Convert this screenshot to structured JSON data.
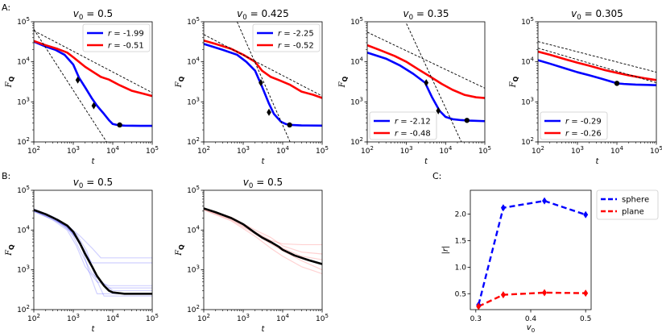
{
  "figure": {
    "panel_labels": [
      "A:",
      "B:",
      "C:"
    ]
  },
  "colors": {
    "sphere": "#0000ff",
    "plane": "#ff0000",
    "fit": "#000000",
    "mean": "#000000"
  },
  "chart_data": [
    {
      "id": "A1",
      "type": "line",
      "title": "v0 = 0.5",
      "title_v": "v",
      "title_sub": "0",
      "title_rest": " = 0.5",
      "xlabel": "t",
      "ylabel": "F_Q",
      "xscale": "log",
      "yscale": "log",
      "xlim": [
        100,
        100000
      ],
      "ylim": [
        100,
        100000
      ],
      "xticks": [
        "10^2",
        "10^3",
        "10^4",
        "10^5"
      ],
      "yticks": [
        "10^2",
        "10^3",
        "10^4",
        "10^5"
      ],
      "legend": {
        "loc": "upper-right",
        "entries": [
          {
            "label": "r = -1.99",
            "color": "#0000ff"
          },
          {
            "label": "r = -0.51",
            "color": "#ff0000"
          }
        ]
      },
      "series": [
        {
          "name": "sphere",
          "color": "#0000ff",
          "x": [
            100,
            200,
            350,
            600,
            1000,
            1400,
            2000,
            3000,
            4000,
            6000,
            8000,
            10000,
            14000,
            20000,
            50000,
            100000
          ],
          "y": [
            32000,
            24000,
            20000,
            15000,
            8500,
            4000,
            2300,
            1200,
            800,
            500,
            350,
            280,
            260,
            255,
            252,
            252
          ]
        },
        {
          "name": "plane",
          "color": "#ff0000",
          "x": [
            100,
            200,
            400,
            700,
            1000,
            2000,
            3000,
            5000,
            8000,
            15000,
            30000,
            60000,
            100000
          ],
          "y": [
            33000,
            26000,
            21000,
            17000,
            13000,
            7500,
            5800,
            4200,
            3600,
            2600,
            1900,
            1600,
            1400
          ]
        }
      ],
      "fits": [
        {
          "x": [
            100,
            20000
          ],
          "y": [
            65000,
            20
          ]
        },
        {
          "x": [
            100,
            100000
          ],
          "y": [
            60000,
            1700
          ]
        }
      ],
      "markers": [
        {
          "x": 1300,
          "y": 3500
        },
        {
          "x": 3300,
          "y": 800
        },
        {
          "x": 15000,
          "y": 265
        }
      ]
    },
    {
      "id": "A2",
      "type": "line",
      "title": "v0 = 0.425",
      "title_v": "v",
      "title_sub": "0",
      "title_rest": " = 0.425",
      "xlabel": "t",
      "ylabel": "F_Q",
      "xscale": "log",
      "yscale": "log",
      "xlim": [
        100,
        100000
      ],
      "ylim": [
        100,
        100000
      ],
      "xticks": [
        "10^2",
        "10^3",
        "10^4",
        "10^5"
      ],
      "yticks": [
        "10^2",
        "10^3",
        "10^4",
        "10^5"
      ],
      "legend": {
        "loc": "upper-right",
        "entries": [
          {
            "label": "r = -2.25",
            "color": "#0000ff"
          },
          {
            "label": "r = -0.52",
            "color": "#ff0000"
          }
        ]
      },
      "series": [
        {
          "name": "sphere",
          "color": "#0000ff",
          "x": [
            100,
            300,
            700,
            1200,
            2000,
            3000,
            4500,
            6000,
            9000,
            12000,
            16000,
            30000,
            100000
          ],
          "y": [
            28000,
            20000,
            15000,
            10000,
            6000,
            2400,
            900,
            500,
            320,
            280,
            265,
            258,
            255
          ]
        },
        {
          "name": "plane",
          "color": "#ff0000",
          "x": [
            100,
            200,
            500,
            1000,
            2000,
            3000,
            5000,
            8000,
            15000,
            30000,
            60000,
            100000
          ],
          "y": [
            34000,
            28000,
            21000,
            15000,
            10000,
            6000,
            4200,
            3500,
            2700,
            1800,
            1500,
            1250
          ]
        }
      ],
      "fits": [
        {
          "x": [
            700,
            17000
          ],
          "y": [
            100000,
            80
          ]
        },
        {
          "x": [
            100,
            100000
          ],
          "y": [
            48000,
            1400
          ]
        }
      ],
      "markers": [
        {
          "x": 2800,
          "y": 3000
        },
        {
          "x": 4500,
          "y": 550
        },
        {
          "x": 15000,
          "y": 265
        }
      ]
    },
    {
      "id": "A3",
      "type": "line",
      "title": "v0 = 0.35",
      "title_v": "v",
      "title_sub": "0",
      "title_rest": " = 0.35",
      "xlabel": "t",
      "ylabel": "F_Q",
      "xscale": "log",
      "yscale": "log",
      "xlim": [
        100,
        100000
      ],
      "ylim": [
        100,
        100000
      ],
      "xticks": [
        "10^2",
        "10^3",
        "10^4",
        "10^5"
      ],
      "yticks": [
        "10^2",
        "10^3",
        "10^4",
        "10^5"
      ],
      "legend": {
        "loc": "lower-left",
        "entries": [
          {
            "label": "r = -2.12",
            "color": "#0000ff"
          },
          {
            "label": "r = -0.48",
            "color": "#ff0000"
          }
        ]
      },
      "series": [
        {
          "name": "sphere",
          "color": "#0000ff",
          "x": [
            100,
            300,
            700,
            1500,
            3000,
            4500,
            7000,
            10000,
            15000,
            25000,
            40000,
            100000
          ],
          "y": [
            17000,
            12000,
            8000,
            5000,
            3000,
            1300,
            600,
            420,
            370,
            350,
            340,
            330
          ]
        },
        {
          "name": "plane",
          "color": "#ff0000",
          "x": [
            100,
            200,
            500,
            1000,
            2000,
            4000,
            8000,
            15000,
            30000,
            60000,
            100000
          ],
          "y": [
            26000,
            20000,
            14000,
            10000,
            6500,
            4300,
            2800,
            2000,
            1500,
            1300,
            1250
          ]
        }
      ],
      "fits": [
        {
          "x": [
            1000,
            28000
          ],
          "y": [
            90000,
            80
          ]
        },
        {
          "x": [
            100,
            100000
          ],
          "y": [
            55000,
            2200
          ]
        }
      ],
      "markers": [
        {
          "x": 3200,
          "y": 3000
        },
        {
          "x": 6500,
          "y": 600
        },
        {
          "x": 35000,
          "y": 345
        }
      ]
    },
    {
      "id": "A4",
      "type": "line",
      "title": "v0 = 0.305",
      "title_v": "v",
      "title_sub": "0",
      "title_rest": " = 0.305",
      "xlabel": "t",
      "ylabel": "F_Q",
      "xscale": "log",
      "yscale": "log",
      "xlim": [
        100,
        100000
      ],
      "ylim": [
        100,
        100000
      ],
      "xticks": [
        "10^2",
        "10^3",
        "10^4",
        "10^5"
      ],
      "yticks": [
        "10^2",
        "10^3",
        "10^4",
        "10^5"
      ],
      "legend": {
        "loc": "lower-left",
        "entries": [
          {
            "label": "r = -0.29",
            "color": "#0000ff"
          },
          {
            "label": "r = -0.26",
            "color": "#ff0000"
          }
        ]
      },
      "series": [
        {
          "name": "sphere",
          "color": "#0000ff",
          "x": [
            100,
            200,
            500,
            1000,
            2000,
            4000,
            8000,
            10000,
            15000,
            30000,
            60000,
            100000
          ],
          "y": [
            11000,
            9000,
            6800,
            5500,
            4600,
            3800,
            3100,
            2900,
            2800,
            2700,
            2650,
            2600
          ]
        },
        {
          "name": "plane",
          "color": "#ff0000",
          "x": [
            100,
            200,
            500,
            1000,
            2000,
            5000,
            10000,
            20000,
            50000,
            100000
          ],
          "y": [
            18000,
            15000,
            11500,
            9500,
            8000,
            6200,
            5300,
            4600,
            3900,
            3500
          ]
        }
      ],
      "fits": [
        {
          "x": [
            100,
            100000
          ],
          "y": [
            22000,
            3000
          ]
        },
        {
          "x": [
            100,
            100000
          ],
          "y": [
            32000,
            5500
          ]
        }
      ],
      "markers": [
        {
          "x": 10000,
          "y": 2900
        }
      ]
    },
    {
      "id": "B1",
      "type": "line",
      "title": "v0 = 0.5",
      "title_v": "v",
      "title_sub": "0",
      "title_rest": " = 0.5",
      "xlabel": "t",
      "ylabel": "F_Q",
      "xscale": "log",
      "yscale": "log",
      "xlim": [
        100,
        100000
      ],
      "ylim": [
        100,
        100000
      ],
      "xticks": [
        "10^2",
        "10^3",
        "10^4",
        "10^5"
      ],
      "yticks": [
        "10^2",
        "10^3",
        "10^4",
        "10^5"
      ],
      "ensemble_color": "#0000ff",
      "ensemble": [
        {
          "x": [
            100,
            300,
            700,
            1200,
            2000,
            3000,
            5000,
            20000,
            100000
          ],
          "y": [
            32000,
            20000,
            12000,
            6000,
            2500,
            1500,
            1500,
            1500,
            1500
          ]
        },
        {
          "x": [
            100,
            300,
            700,
            1200,
            2000,
            4000,
            8000,
            100000
          ],
          "y": [
            30000,
            18000,
            10000,
            4000,
            1200,
            500,
            400,
            400
          ]
        },
        {
          "x": [
            100,
            300,
            700,
            1000,
            1500,
            3000,
            10000,
            100000
          ],
          "y": [
            33000,
            21000,
            11000,
            7000,
            3000,
            800,
            300,
            300
          ]
        },
        {
          "x": [
            100,
            300,
            700,
            1500,
            2500,
            4000,
            100000
          ],
          "y": [
            31000,
            19000,
            12000,
            5000,
            900,
            250,
            250
          ]
        },
        {
          "x": [
            100,
            250,
            600,
            1200,
            2200,
            3500,
            6000,
            100000
          ],
          "y": [
            29000,
            20000,
            13000,
            8000,
            3000,
            700,
            220,
            220
          ]
        },
        {
          "x": [
            100,
            300,
            800,
            1500,
            3000,
            5000,
            100000
          ],
          "y": [
            34000,
            22000,
            12000,
            7000,
            3500,
            2000,
            2000
          ]
        },
        {
          "x": [
            100,
            300,
            900,
            2000,
            4000,
            7000,
            100000
          ],
          "y": [
            30000,
            20000,
            9000,
            3000,
            700,
            350,
            350
          ]
        }
      ],
      "series": [
        {
          "name": "mean",
          "color": "#000000",
          "x": [
            100,
            200,
            400,
            700,
            1000,
            1500,
            2000,
            3000,
            4000,
            6000,
            8000,
            10000,
            20000,
            50000,
            100000
          ],
          "y": [
            32000,
            25000,
            18000,
            13000,
            9000,
            4500,
            2500,
            1200,
            700,
            400,
            300,
            270,
            250,
            250,
            250
          ]
        }
      ]
    },
    {
      "id": "B2",
      "type": "line",
      "title": "v0 = 0.5",
      "title_v": "v",
      "title_sub": "0",
      "title_rest": " = 0.5",
      "xlabel": "t",
      "ylabel": "F_Q",
      "xscale": "log",
      "yscale": "log",
      "xlim": [
        100,
        100000
      ],
      "ylim": [
        100,
        100000
      ],
      "xticks": [
        "10^2",
        "10^3",
        "10^4",
        "10^5"
      ],
      "yticks": [
        "10^2",
        "10^3",
        "10^4",
        "10^5"
      ],
      "ensemble_color": "#ff0000",
      "ensemble": [
        {
          "x": [
            100,
            500,
            2000,
            5000,
            10000,
            30000,
            100000
          ],
          "y": [
            35000,
            20000,
            9000,
            5500,
            4500,
            4300,
            4300
          ]
        },
        {
          "x": [
            100,
            500,
            2000,
            5000,
            10000,
            30000,
            100000
          ],
          "y": [
            32000,
            17000,
            7000,
            3500,
            2200,
            1200,
            800
          ]
        },
        {
          "x": [
            100,
            500,
            2000,
            5000,
            10000,
            30000,
            100000
          ],
          "y": [
            36000,
            21000,
            10000,
            6500,
            4000,
            2800,
            2500
          ]
        },
        {
          "x": [
            100,
            500,
            2000,
            5000,
            10000,
            30000,
            100000
          ],
          "y": [
            33000,
            18000,
            8000,
            4500,
            3000,
            1700,
            1000
          ]
        },
        {
          "x": [
            100,
            500,
            2000,
            5000,
            10000,
            30000,
            100000
          ],
          "y": [
            34000,
            19000,
            8500,
            5000,
            3500,
            2200,
            1800
          ]
        }
      ],
      "series": [
        {
          "name": "mean",
          "color": "#000000",
          "x": [
            100,
            200,
            500,
            1000,
            2000,
            3000,
            5000,
            8000,
            10000,
            20000,
            50000,
            100000
          ],
          "y": [
            35000,
            28000,
            20000,
            14000,
            8500,
            6500,
            5000,
            3800,
            3200,
            2300,
            1700,
            1400
          ]
        }
      ]
    },
    {
      "id": "C",
      "type": "line",
      "xlabel": "v0",
      "xlabel_v": "v",
      "xlabel_sub": "0",
      "ylabel": "|r|",
      "xlim": [
        0.29,
        0.51
      ],
      "ylim": [
        0.2,
        2.45
      ],
      "xticks": [
        "0.3",
        "0.4",
        "0.5"
      ],
      "xtick_values": [
        0.3,
        0.4,
        0.5
      ],
      "yticks": [
        "0.5",
        "1.0",
        "1.5",
        "2.0"
      ],
      "ytick_values": [
        0.5,
        1.0,
        1.5,
        2.0
      ],
      "legend": {
        "loc": "outside-upper-right",
        "entries": [
          {
            "label": "sphere",
            "color": "#0000ff"
          },
          {
            "label": "plane",
            "color": "#ff0000"
          }
        ]
      },
      "series": [
        {
          "name": "sphere",
          "color": "#0000ff",
          "x": [
            0.305,
            0.35,
            0.425,
            0.5
          ],
          "y": [
            0.29,
            2.12,
            2.25,
            1.99
          ]
        },
        {
          "name": "plane",
          "color": "#ff0000",
          "x": [
            0.305,
            0.35,
            0.425,
            0.5
          ],
          "y": [
            0.26,
            0.48,
            0.52,
            0.51
          ]
        }
      ]
    }
  ]
}
